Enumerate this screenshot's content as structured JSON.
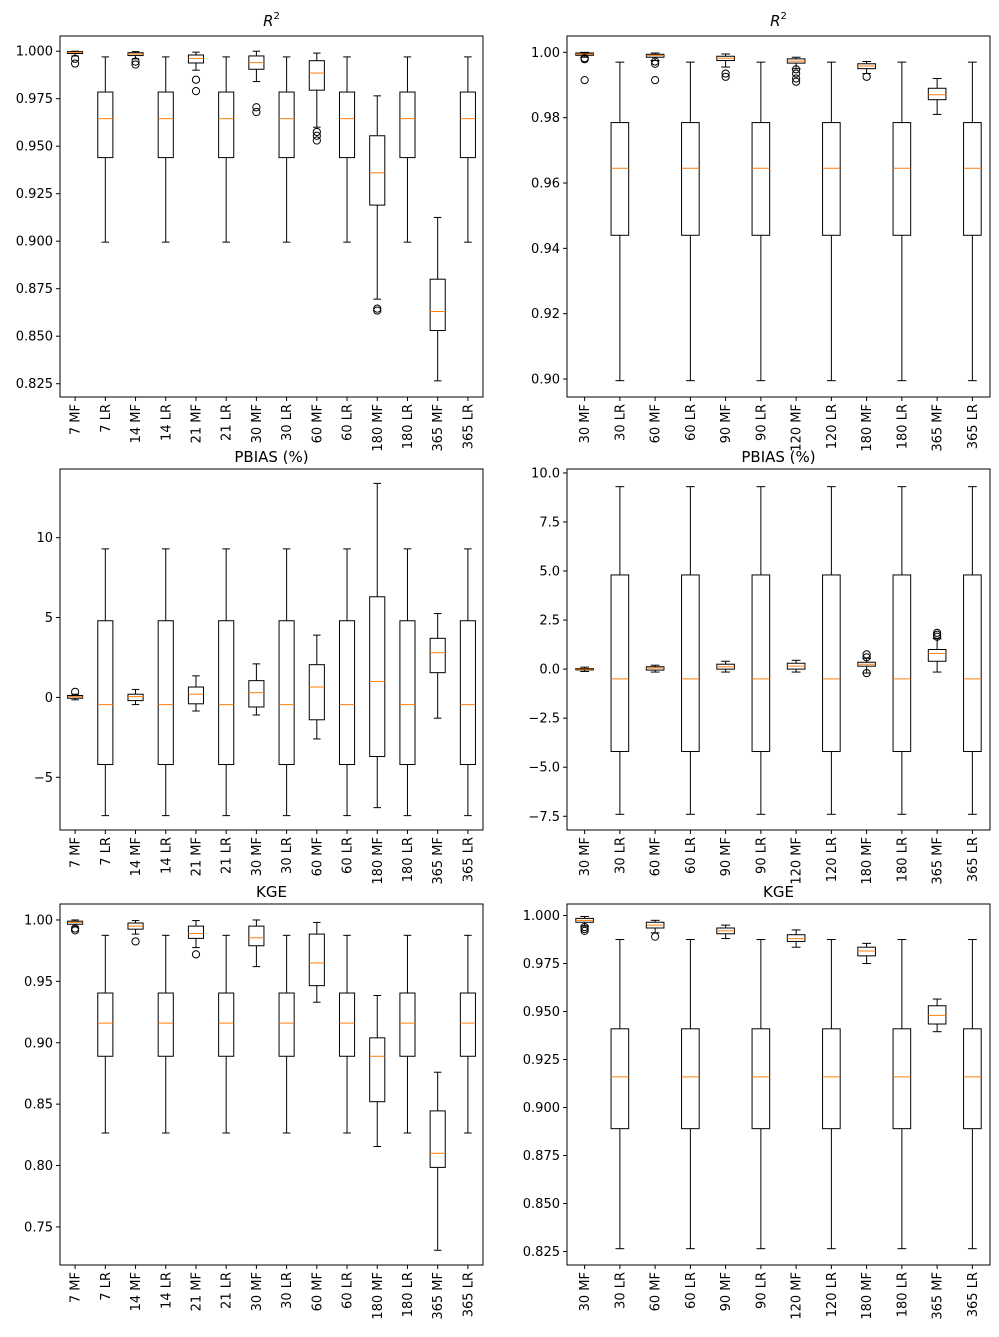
{
  "chart_data": [
    {
      "id": "r2-left",
      "type": "box",
      "title": "R",
      "title_superscript": "2",
      "xlabel": "",
      "ylabel": "",
      "ylim": [
        0.818,
        1.008
      ],
      "yticks": [
        0.825,
        0.85,
        0.875,
        0.9,
        0.925,
        0.95,
        0.975,
        1.0
      ],
      "ytick_labels": [
        "0.825",
        "0.850",
        "0.875",
        "0.900",
        "0.925",
        "0.950",
        "0.975",
        "1.000"
      ],
      "categories": [
        "7 MF",
        "7 LR",
        "14 MF",
        "14 LR",
        "21 MF",
        "21 LR",
        "30 MF",
        "30 LR",
        "60 MF",
        "60 LR",
        "180 MF",
        "180 LR",
        "365 MF",
        "365 LR"
      ],
      "boxes": [
        {
          "min": 0.9975,
          "q1": 0.9988,
          "median": 0.9994,
          "q3": 0.9998,
          "max": 1.0,
          "outliers": [
            0.996,
            0.9935
          ]
        },
        {
          "min": 0.8995,
          "q1": 0.944,
          "median": 0.9645,
          "q3": 0.9785,
          "max": 0.997,
          "outliers": []
        },
        {
          "min": 0.996,
          "q1": 0.9977,
          "median": 0.9985,
          "q3": 0.9992,
          "max": 0.9998,
          "outliers": [
            0.9945,
            0.993
          ]
        },
        {
          "min": 0.8995,
          "q1": 0.944,
          "median": 0.9645,
          "q3": 0.9785,
          "max": 0.997,
          "outliers": []
        },
        {
          "min": 0.99,
          "q1": 0.9938,
          "median": 0.9962,
          "q3": 0.998,
          "max": 0.9995,
          "outliers": [
            0.985,
            0.979
          ]
        },
        {
          "min": 0.8995,
          "q1": 0.944,
          "median": 0.9645,
          "q3": 0.9785,
          "max": 0.997,
          "outliers": []
        },
        {
          "min": 0.984,
          "q1": 0.9905,
          "median": 0.994,
          "q3": 0.9975,
          "max": 1.0,
          "outliers": [
            0.9705,
            0.968
          ]
        },
        {
          "min": 0.8995,
          "q1": 0.944,
          "median": 0.9645,
          "q3": 0.9785,
          "max": 0.997,
          "outliers": []
        },
        {
          "min": 0.96,
          "q1": 0.9795,
          "median": 0.9885,
          "q3": 0.995,
          "max": 0.999,
          "outliers": [
            0.9575,
            0.9555,
            0.953
          ]
        },
        {
          "min": 0.8995,
          "q1": 0.944,
          "median": 0.9645,
          "q3": 0.9785,
          "max": 0.997,
          "outliers": []
        },
        {
          "min": 0.8695,
          "q1": 0.919,
          "median": 0.936,
          "q3": 0.9555,
          "max": 0.9765,
          "outliers": [
            0.8645,
            0.8635
          ]
        },
        {
          "min": 0.8995,
          "q1": 0.944,
          "median": 0.9645,
          "q3": 0.9785,
          "max": 0.997,
          "outliers": []
        },
        {
          "min": 0.8265,
          "q1": 0.853,
          "median": 0.863,
          "q3": 0.88,
          "max": 0.9125,
          "outliers": []
        },
        {
          "min": 0.8995,
          "q1": 0.944,
          "median": 0.9645,
          "q3": 0.9785,
          "max": 0.997,
          "outliers": []
        }
      ]
    },
    {
      "id": "r2-right",
      "type": "box",
      "title": "R",
      "title_superscript": "2",
      "xlabel": "",
      "ylabel": "",
      "ylim": [
        0.8945,
        1.005
      ],
      "yticks": [
        0.9,
        0.92,
        0.94,
        0.96,
        0.98,
        1.0
      ],
      "ytick_labels": [
        "0.90",
        "0.92",
        "0.94",
        "0.96",
        "0.98",
        "1.00"
      ],
      "categories": [
        "30 MF",
        "30 LR",
        "60 MF",
        "60 LR",
        "90 MF",
        "90 LR",
        "120 MF",
        "120 LR",
        "180 MF",
        "180 LR",
        "365 MF",
        "365 LR"
      ],
      "boxes": [
        {
          "min": 0.9985,
          "q1": 0.9991,
          "median": 0.9995,
          "q3": 0.9998,
          "max": 1.0,
          "outliers": [
            0.9982,
            0.9979,
            0.9915
          ]
        },
        {
          "min": 0.8995,
          "q1": 0.944,
          "median": 0.9645,
          "q3": 0.9785,
          "max": 0.997,
          "outliers": []
        },
        {
          "min": 0.9975,
          "q1": 0.9985,
          "median": 0.999,
          "q3": 0.9994,
          "max": 0.9998,
          "outliers": [
            0.9972,
            0.9965,
            0.9915
          ]
        },
        {
          "min": 0.8995,
          "q1": 0.944,
          "median": 0.9645,
          "q3": 0.9785,
          "max": 0.997,
          "outliers": []
        },
        {
          "min": 0.9955,
          "q1": 0.9975,
          "median": 0.9982,
          "q3": 0.9988,
          "max": 0.9995,
          "outliers": [
            0.9935,
            0.9925
          ]
        },
        {
          "min": 0.8995,
          "q1": 0.944,
          "median": 0.9645,
          "q3": 0.9785,
          "max": 0.997,
          "outliers": []
        },
        {
          "min": 0.995,
          "q1": 0.9967,
          "median": 0.9973,
          "q3": 0.998,
          "max": 0.9985,
          "outliers": [
            0.9948,
            0.9935,
            0.992,
            0.991
          ]
        },
        {
          "min": 0.8995,
          "q1": 0.944,
          "median": 0.9645,
          "q3": 0.9785,
          "max": 0.997,
          "outliers": []
        },
        {
          "min": 0.9935,
          "q1": 0.995,
          "median": 0.9958,
          "q3": 0.9965,
          "max": 0.9972,
          "outliers": [
            0.9925
          ]
        },
        {
          "min": 0.8995,
          "q1": 0.944,
          "median": 0.9645,
          "q3": 0.9785,
          "max": 0.997,
          "outliers": []
        },
        {
          "min": 0.981,
          "q1": 0.9855,
          "median": 0.987,
          "q3": 0.989,
          "max": 0.992,
          "outliers": []
        },
        {
          "min": 0.8995,
          "q1": 0.944,
          "median": 0.9645,
          "q3": 0.9785,
          "max": 0.997,
          "outliers": []
        }
      ]
    },
    {
      "id": "pbias-left",
      "type": "box",
      "title": "PBIAS (%)",
      "title_superscript": "",
      "xlabel": "",
      "ylabel": "",
      "ylim": [
        -8.3,
        14.3
      ],
      "yticks": [
        -5,
        0,
        5,
        10
      ],
      "ytick_labels": [
        "−5",
        "0",
        "5",
        "10"
      ],
      "categories": [
        "7 MF",
        "7 LR",
        "14 MF",
        "14 LR",
        "21 MF",
        "21 LR",
        "30 MF",
        "30 LR",
        "60 MF",
        "60 LR",
        "180 MF",
        "180 LR",
        "365 MF",
        "365 LR"
      ],
      "boxes": [
        {
          "min": -0.15,
          "q1": -0.05,
          "median": 0.05,
          "q3": 0.12,
          "max": 0.2,
          "outliers": [
            0.35
          ]
        },
        {
          "min": -7.4,
          "q1": -4.2,
          "median": -0.45,
          "q3": 4.8,
          "max": 9.3,
          "outliers": []
        },
        {
          "min": -0.45,
          "q1": -0.2,
          "median": 0.05,
          "q3": 0.2,
          "max": 0.5,
          "outliers": []
        },
        {
          "min": -7.4,
          "q1": -4.2,
          "median": -0.45,
          "q3": 4.8,
          "max": 9.3,
          "outliers": []
        },
        {
          "min": -0.85,
          "q1": -0.4,
          "median": 0.2,
          "q3": 0.65,
          "max": 1.35,
          "outliers": []
        },
        {
          "min": -7.4,
          "q1": -4.2,
          "median": -0.45,
          "q3": 4.8,
          "max": 9.3,
          "outliers": []
        },
        {
          "min": -1.1,
          "q1": -0.6,
          "median": 0.3,
          "q3": 1.05,
          "max": 2.1,
          "outliers": []
        },
        {
          "min": -7.4,
          "q1": -4.2,
          "median": -0.45,
          "q3": 4.8,
          "max": 9.3,
          "outliers": []
        },
        {
          "min": -2.6,
          "q1": -1.4,
          "median": 0.65,
          "q3": 2.05,
          "max": 3.9,
          "outliers": []
        },
        {
          "min": -7.4,
          "q1": -4.2,
          "median": -0.45,
          "q3": 4.8,
          "max": 9.3,
          "outliers": []
        },
        {
          "min": -6.9,
          "q1": -3.7,
          "median": 1.0,
          "q3": 6.3,
          "max": 13.4,
          "outliers": []
        },
        {
          "min": -7.4,
          "q1": -4.2,
          "median": -0.45,
          "q3": 4.8,
          "max": 9.3,
          "outliers": []
        },
        {
          "min": -1.3,
          "q1": 1.55,
          "median": 2.8,
          "q3": 3.7,
          "max": 5.25,
          "outliers": []
        },
        {
          "min": -7.4,
          "q1": -4.2,
          "median": -0.45,
          "q3": 4.8,
          "max": 9.3,
          "outliers": []
        }
      ]
    },
    {
      "id": "pbias-right",
      "type": "box",
      "title": "PBIAS (%)",
      "title_superscript": "",
      "xlabel": "",
      "ylabel": "",
      "ylim": [
        -8.2,
        10.2
      ],
      "yticks": [
        -7.5,
        -5.0,
        -2.5,
        0.0,
        2.5,
        5.0,
        7.5,
        10.0
      ],
      "ytick_labels": [
        "−7.5",
        "−5.0",
        "−2.5",
        "0.0",
        "2.5",
        "5.0",
        "7.5",
        "10.0"
      ],
      "categories": [
        "30 MF",
        "30 LR",
        "60 MF",
        "60 LR",
        "90 MF",
        "90 LR",
        "120 MF",
        "120 LR",
        "180 MF",
        "180 LR",
        "365 MF",
        "365 LR"
      ],
      "boxes": [
        {
          "min": -0.12,
          "q1": -0.04,
          "median": 0.0,
          "q3": 0.03,
          "max": 0.1,
          "outliers": []
        },
        {
          "min": -7.4,
          "q1": -4.2,
          "median": -0.5,
          "q3": 4.8,
          "max": 9.3,
          "outliers": []
        },
        {
          "min": -0.15,
          "q1": -0.05,
          "median": 0.05,
          "q3": 0.12,
          "max": 0.2,
          "outliers": []
        },
        {
          "min": -7.4,
          "q1": -4.2,
          "median": -0.5,
          "q3": 4.8,
          "max": 9.3,
          "outliers": []
        },
        {
          "min": -0.15,
          "q1": 0.0,
          "median": 0.12,
          "q3": 0.25,
          "max": 0.4,
          "outliers": []
        },
        {
          "min": -7.4,
          "q1": -4.2,
          "median": -0.5,
          "q3": 4.8,
          "max": 9.3,
          "outliers": []
        },
        {
          "min": -0.15,
          "q1": 0.0,
          "median": 0.15,
          "q3": 0.3,
          "max": 0.45,
          "outliers": []
        },
        {
          "min": -7.4,
          "q1": -4.2,
          "median": -0.5,
          "q3": 4.8,
          "max": 9.3,
          "outliers": []
        },
        {
          "min": -0.2,
          "q1": 0.15,
          "median": 0.25,
          "q3": 0.35,
          "max": 0.55,
          "outliers": [
            0.75,
            0.6,
            -0.2
          ]
        },
        {
          "min": -7.4,
          "q1": -4.2,
          "median": -0.5,
          "q3": 4.8,
          "max": 9.3,
          "outliers": []
        },
        {
          "min": -0.15,
          "q1": 0.4,
          "median": 0.8,
          "q3": 1.0,
          "max": 1.55,
          "outliers": [
            1.85,
            1.75,
            1.65
          ]
        },
        {
          "min": -7.4,
          "q1": -4.2,
          "median": -0.5,
          "q3": 4.8,
          "max": 9.3,
          "outliers": []
        }
      ]
    },
    {
      "id": "kge-left",
      "type": "box",
      "title": "KGE",
      "title_superscript": "",
      "xlabel": "",
      "ylabel": "",
      "ylim": [
        0.719,
        1.013
      ],
      "yticks": [
        0.75,
        0.8,
        0.85,
        0.9,
        0.95,
        1.0
      ],
      "ytick_labels": [
        "0.75",
        "0.80",
        "0.85",
        "0.90",
        "0.95",
        "1.00"
      ],
      "categories": [
        "7 MF",
        "7 LR",
        "14 MF",
        "14 LR",
        "21 MF",
        "21 LR",
        "30 MF",
        "30 LR",
        "60 MF",
        "60 LR",
        "180 MF",
        "180 LR",
        "365 MF",
        "365 LR"
      ],
      "boxes": [
        {
          "min": 0.9945,
          "q1": 0.9965,
          "median": 0.998,
          "q3": 0.999,
          "max": 1.0,
          "outliers": [
            0.993,
            0.9915
          ]
        },
        {
          "min": 0.8265,
          "q1": 0.889,
          "median": 0.916,
          "q3": 0.9405,
          "max": 0.9875,
          "outliers": []
        },
        {
          "min": 0.9885,
          "q1": 0.9925,
          "median": 0.995,
          "q3": 0.9975,
          "max": 0.9995,
          "outliers": [
            0.9825
          ]
        },
        {
          "min": 0.8265,
          "q1": 0.889,
          "median": 0.916,
          "q3": 0.9405,
          "max": 0.9875,
          "outliers": []
        },
        {
          "min": 0.9775,
          "q1": 0.985,
          "median": 0.989,
          "q3": 0.995,
          "max": 0.9995,
          "outliers": [
            0.972
          ]
        },
        {
          "min": 0.8265,
          "q1": 0.889,
          "median": 0.916,
          "q3": 0.9405,
          "max": 0.9875,
          "outliers": []
        },
        {
          "min": 0.962,
          "q1": 0.979,
          "median": 0.9855,
          "q3": 0.995,
          "max": 1.0,
          "outliers": []
        },
        {
          "min": 0.8265,
          "q1": 0.889,
          "median": 0.916,
          "q3": 0.9405,
          "max": 0.9875,
          "outliers": []
        },
        {
          "min": 0.933,
          "q1": 0.9465,
          "median": 0.965,
          "q3": 0.9885,
          "max": 0.998,
          "outliers": []
        },
        {
          "min": 0.8265,
          "q1": 0.889,
          "median": 0.916,
          "q3": 0.9405,
          "max": 0.9875,
          "outliers": []
        },
        {
          "min": 0.8155,
          "q1": 0.852,
          "median": 0.889,
          "q3": 0.904,
          "max": 0.9385,
          "outliers": []
        },
        {
          "min": 0.8265,
          "q1": 0.889,
          "median": 0.916,
          "q3": 0.9405,
          "max": 0.9875,
          "outliers": []
        },
        {
          "min": 0.731,
          "q1": 0.7985,
          "median": 0.81,
          "q3": 0.8445,
          "max": 0.876,
          "outliers": []
        },
        {
          "min": 0.8265,
          "q1": 0.889,
          "median": 0.916,
          "q3": 0.9405,
          "max": 0.9875,
          "outliers": []
        }
      ]
    },
    {
      "id": "kge-right",
      "type": "box",
      "title": "KGE",
      "title_superscript": "",
      "xlabel": "",
      "ylabel": "",
      "ylim": [
        0.818,
        1.006
      ],
      "yticks": [
        0.825,
        0.85,
        0.875,
        0.9,
        0.925,
        0.95,
        0.975,
        1.0
      ],
      "ytick_labels": [
        "0.825",
        "0.850",
        "0.875",
        "0.900",
        "0.925",
        "0.950",
        "0.975",
        "1.000"
      ],
      "categories": [
        "30 MF",
        "30 LR",
        "60 MF",
        "60 LR",
        "90 MF",
        "90 LR",
        "120 MF",
        "120 LR",
        "180 MF",
        "180 LR",
        "365 MF",
        "365 LR"
      ],
      "boxes": [
        {
          "min": 0.9945,
          "q1": 0.9965,
          "median": 0.9975,
          "q3": 0.9985,
          "max": 0.9995,
          "outliers": [
            0.994,
            0.993,
            0.992
          ]
        },
        {
          "min": 0.8265,
          "q1": 0.889,
          "median": 0.916,
          "q3": 0.941,
          "max": 0.9875,
          "outliers": []
        },
        {
          "min": 0.991,
          "q1": 0.9935,
          "median": 0.995,
          "q3": 0.9965,
          "max": 0.9975,
          "outliers": [
            0.989
          ]
        },
        {
          "min": 0.8265,
          "q1": 0.889,
          "median": 0.916,
          "q3": 0.941,
          "max": 0.9875,
          "outliers": []
        },
        {
          "min": 0.988,
          "q1": 0.9905,
          "median": 0.992,
          "q3": 0.9935,
          "max": 0.995,
          "outliers": []
        },
        {
          "min": 0.8265,
          "q1": 0.889,
          "median": 0.916,
          "q3": 0.941,
          "max": 0.9875,
          "outliers": []
        },
        {
          "min": 0.9835,
          "q1": 0.9865,
          "median": 0.988,
          "q3": 0.99,
          "max": 0.9925,
          "outliers": []
        },
        {
          "min": 0.8265,
          "q1": 0.889,
          "median": 0.916,
          "q3": 0.941,
          "max": 0.9875,
          "outliers": []
        },
        {
          "min": 0.975,
          "q1": 0.979,
          "median": 0.9815,
          "q3": 0.9835,
          "max": 0.9855,
          "outliers": []
        },
        {
          "min": 0.8265,
          "q1": 0.889,
          "median": 0.916,
          "q3": 0.941,
          "max": 0.9875,
          "outliers": []
        },
        {
          "min": 0.9395,
          "q1": 0.9435,
          "median": 0.948,
          "q3": 0.953,
          "max": 0.9565,
          "outliers": []
        },
        {
          "min": 0.8265,
          "q1": 0.889,
          "median": 0.916,
          "q3": 0.941,
          "max": 0.9875,
          "outliers": []
        }
      ]
    }
  ],
  "colors": {
    "median": "#ff7f0e",
    "box_stroke": "#000000",
    "background": "#ffffff"
  }
}
